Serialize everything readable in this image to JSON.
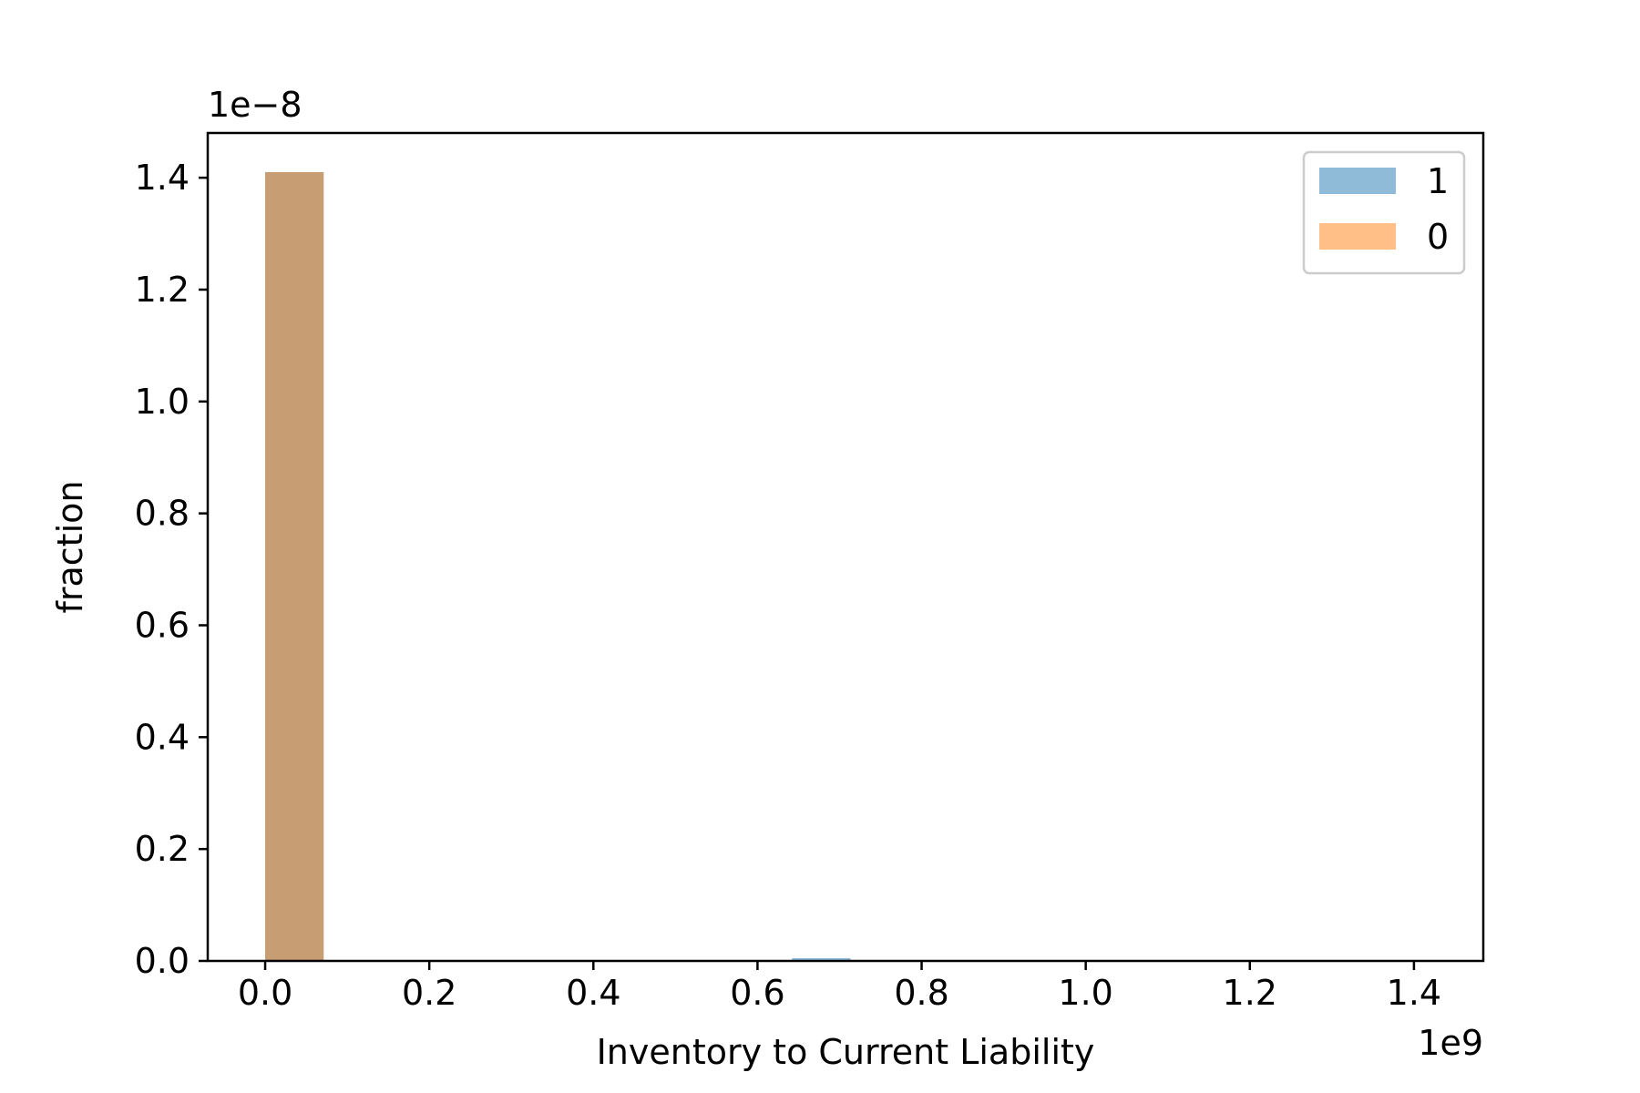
{
  "chart_data": {
    "type": "bar",
    "title": "",
    "xlabel": "Inventory to Current Liability",
    "ylabel": "fraction",
    "x_offset_label": "1e9",
    "y_offset_label": "1e−8",
    "x_scale": 1000000000.0,
    "y_scale": 1e-08,
    "xlim": [
      -0.07,
      1.4845
    ],
    "ylim": [
      0,
      1.48
    ],
    "xticks": [
      0.0,
      0.2,
      0.4,
      0.6,
      0.8,
      1.0,
      1.2,
      1.4
    ],
    "xtick_labels": [
      "0.0",
      "0.2",
      "0.4",
      "0.6",
      "0.8",
      "1.0",
      "1.2",
      "1.4"
    ],
    "yticks": [
      0.0,
      0.2,
      0.4,
      0.6,
      0.8,
      1.0,
      1.2,
      1.4
    ],
    "ytick_labels": [
      "0.0",
      "0.2",
      "0.4",
      "0.6",
      "0.8",
      "1.0",
      "1.2",
      "1.4"
    ],
    "grid": false,
    "legend_position": "top-right",
    "bin_width": 0.0713,
    "series": [
      {
        "name": "1",
        "color": "#1f77b4",
        "opacity": 0.5,
        "bars": [
          {
            "x": 0.0,
            "value": 1.41
          },
          {
            "x": 0.642,
            "value": 0.005
          }
        ]
      },
      {
        "name": "0",
        "color": "#ff7f0e",
        "opacity": 0.5,
        "bars": [
          {
            "x": 0.0,
            "value": 1.41
          }
        ]
      }
    ]
  }
}
